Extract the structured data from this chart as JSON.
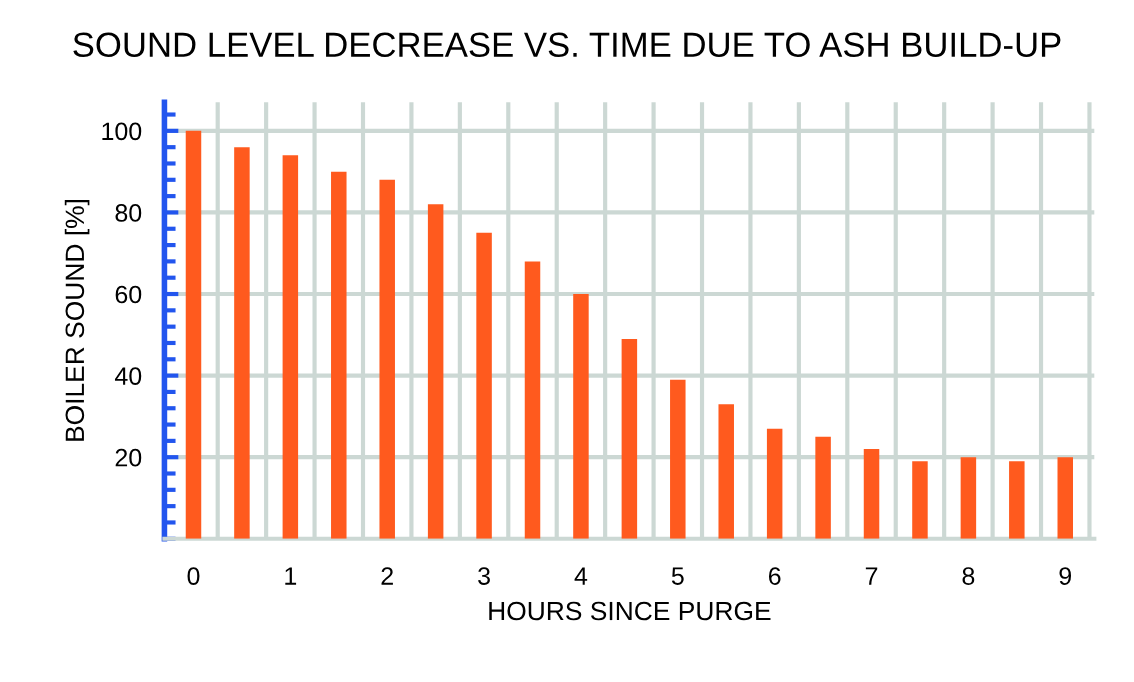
{
  "chart_data": {
    "type": "bar",
    "title": "SOUND LEVEL DECREASE VS. TIME DUE TO ASH BUILD-UP",
    "xlabel": "HOURS SINCE PURGE",
    "ylabel": "BOILER SOUND [%]",
    "x": [
      0,
      0.5,
      1,
      1.5,
      2,
      2.5,
      3,
      3.5,
      4,
      4.5,
      5,
      5.5,
      6,
      6.5,
      7,
      7.5,
      8,
      8.5,
      9
    ],
    "values": [
      100,
      96,
      94,
      90,
      88,
      82,
      75,
      68,
      60,
      49,
      39,
      33,
      27,
      25,
      22,
      19,
      20,
      19,
      20
    ],
    "color": "#ff5a1e",
    "xlim": [
      -0.3,
      9.3
    ],
    "xticks": [
      0,
      {
        "value": 0.25,
        "label": null
      },
      {
        "value": 0.75,
        "label": null
      },
      1,
      {
        "value": 1.25,
        "label": null
      },
      {
        "value": 1.75,
        "label": null
      },
      2,
      {
        "value": 2.25,
        "label": null
      },
      {
        "value": 2.75,
        "label": null
      },
      3,
      {
        "value": 3.25,
        "label": null
      },
      {
        "value": 3.75,
        "label": null
      },
      4,
      {
        "value": 4.25,
        "label": null
      },
      {
        "value": 4.75,
        "label": null
      },
      5,
      {
        "value": 5.25,
        "label": null
      },
      {
        "value": 5.75,
        "label": null
      },
      6,
      {
        "value": 6.25,
        "label": null
      },
      {
        "value": 6.75,
        "label": null
      },
      7,
      {
        "value": 7.25,
        "label": null
      },
      {
        "value": 7.75,
        "label": null
      },
      8,
      {
        "value": 8.25,
        "label": null
      },
      {
        "value": 8.75,
        "label": null
      },
      9,
      {
        "value": 9.25,
        "label": null
      }
    ],
    "ylim": [
      0,
      107
    ],
    "yticks": [
      20,
      40,
      60,
      80,
      100
    ],
    "grid": true
  }
}
